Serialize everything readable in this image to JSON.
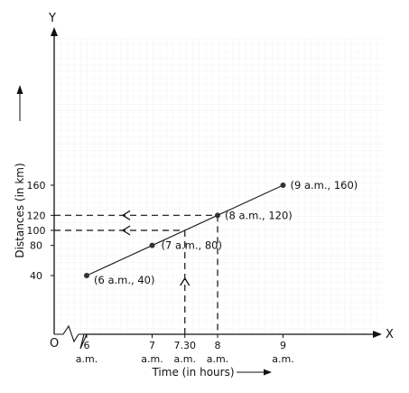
{
  "chart_data": {
    "type": "line",
    "xlabel": "Time (in hours)",
    "ylabel": "Distances (in km)",
    "x_axis_letter": "X",
    "y_axis_letter": "Y",
    "origin_label": "O",
    "grid": true,
    "x_ticks": [
      {
        "hour": 6,
        "label": "6",
        "sub": "a.m."
      },
      {
        "hour": 7,
        "label": "7",
        "sub": "a.m."
      },
      {
        "hour": 7.5,
        "label": "7.30",
        "sub": "a.m."
      },
      {
        "hour": 8,
        "label": "8",
        "sub": "a.m."
      },
      {
        "hour": 9,
        "label": "9",
        "sub": "a.m."
      }
    ],
    "y_ticks": [
      40,
      80,
      100,
      120,
      160
    ],
    "series": [
      {
        "points": [
          {
            "x": 6,
            "y": 40,
            "label": "(6 a.m., 40)"
          },
          {
            "x": 7,
            "y": 80,
            "label": "(7 a.m., 80)"
          },
          {
            "x": 8,
            "y": 120,
            "label": "(8 a.m., 120)"
          },
          {
            "x": 9,
            "y": 160,
            "label": "(9 a.m., 160)"
          }
        ]
      }
    ],
    "guides": [
      {
        "x": 8,
        "y": 120
      },
      {
        "x": 7.5,
        "y": 100
      }
    ]
  }
}
